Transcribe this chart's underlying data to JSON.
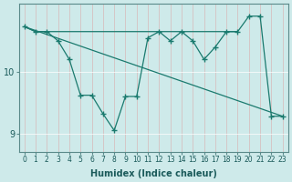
{
  "background_color": "#ceeaea",
  "grid_color": "#c0d8d8",
  "line_color": "#1a7a6e",
  "x_label": "Humidex (Indice chaleur)",
  "x_ticks": [
    0,
    1,
    2,
    3,
    4,
    5,
    6,
    7,
    8,
    9,
    10,
    11,
    12,
    13,
    14,
    15,
    16,
    17,
    18,
    19,
    20,
    21,
    22,
    23
  ],
  "y_ticks": [
    9,
    10
  ],
  "ylim": [
    8.7,
    11.1
  ],
  "xlim": [
    -0.5,
    23.5
  ],
  "flat_line": {
    "x": [
      0,
      1,
      2,
      3,
      10,
      11,
      12,
      13,
      14,
      15,
      16,
      17,
      18,
      19
    ],
    "y": [
      10.73,
      10.65,
      10.65,
      10.65,
      10.65,
      10.65,
      10.65,
      10.65,
      10.65,
      10.65,
      10.65,
      10.65,
      10.65,
      10.65
    ]
  },
  "diagonal_line": {
    "x": [
      0,
      23
    ],
    "y": [
      10.73,
      9.28
    ]
  },
  "zigzag_line": {
    "x": [
      0,
      1,
      2,
      3,
      4,
      5,
      6,
      7,
      8,
      9,
      10,
      11,
      12,
      13,
      14,
      15,
      16,
      17,
      18,
      19,
      20,
      21,
      22,
      23
    ],
    "y": [
      10.73,
      10.65,
      10.65,
      10.5,
      10.2,
      9.62,
      9.62,
      9.32,
      9.05,
      9.6,
      9.6,
      10.55,
      10.65,
      10.5,
      10.65,
      10.5,
      10.2,
      10.4,
      10.65,
      10.65,
      10.9,
      10.9,
      9.28,
      9.28
    ]
  }
}
